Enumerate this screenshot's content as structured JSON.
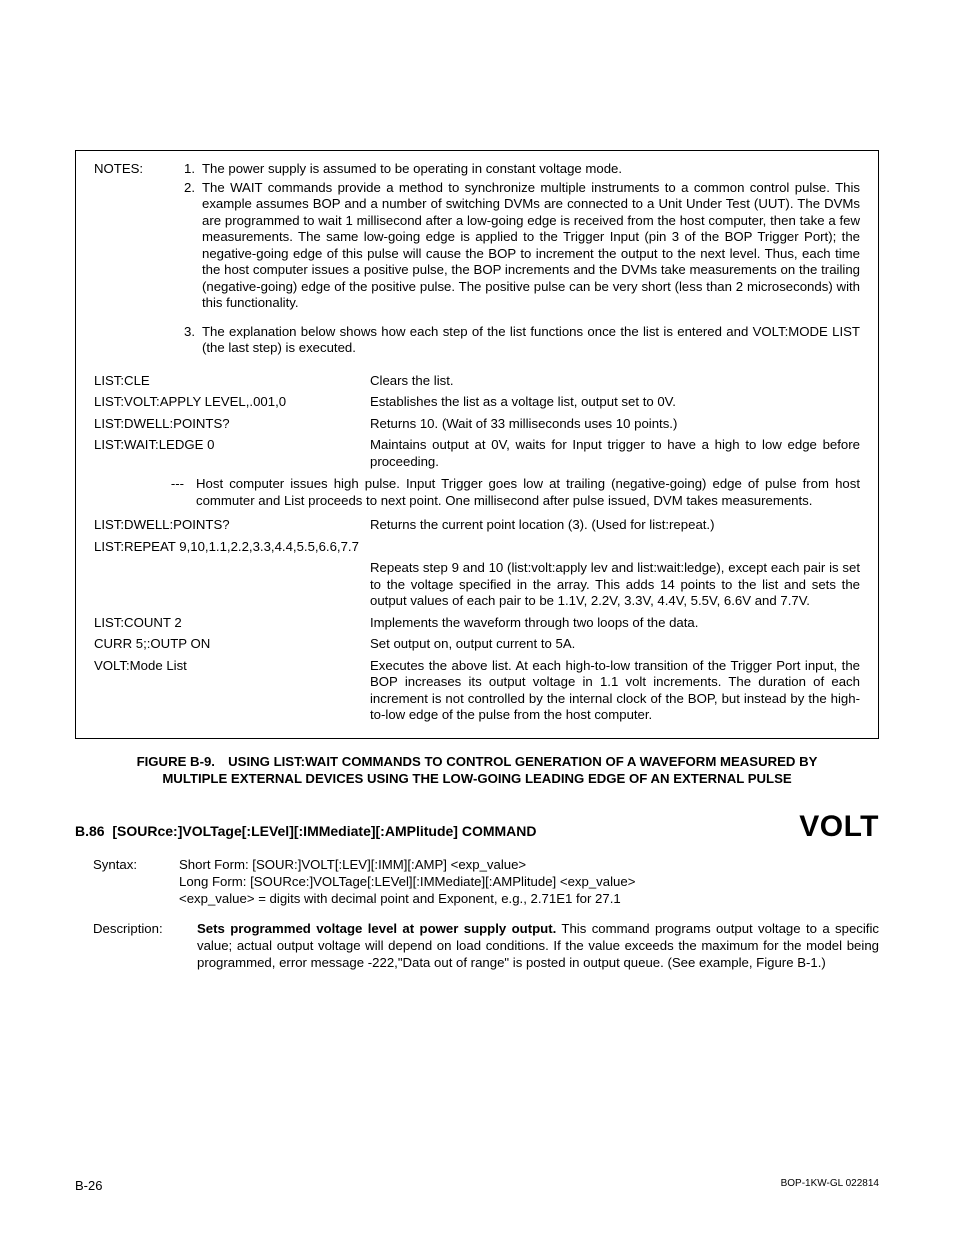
{
  "notes": {
    "label": "NOTES:",
    "n1": {
      "num": "1.",
      "text": "The power supply is assumed to be operating in constant voltage mode."
    },
    "n2": {
      "num": "2.",
      "text": "The WAIT commands provide a method to synchronize multiple instruments to a common control pulse. This example assumes BOP and a number of switching DVMs are connected to a Unit Under Test (UUT). The DVMs are programmed to wait 1 millisecond after a low-going edge is received from the host computer, then take a few measurements. The same low-going edge is applied to the Trigger Input (pin 3 of the BOP Trigger Port); the negative-going edge of this pulse will cause the BOP to increment the output to the next level. Thus, each time the host computer issues a positive pulse, the BOP increments and the DVMs take measurements on the trailing (negative-going) edge of the positive pulse. The positive pulse can be very short (less than 2 microseconds) with this functionality."
    },
    "n3": {
      "num": "3.",
      "text": "The explanation below shows how each step of the list functions once the list is entered and VOLT:MODE LIST (the last step) is executed."
    }
  },
  "cmds": {
    "r1": {
      "l": "LIST:CLE",
      "r": "Clears the list."
    },
    "r2": {
      "l": "LIST:VOLT:APPLY LEVEL,.001,0",
      "r": "Establishes the list as a voltage list, output set to 0V."
    },
    "r3": {
      "l": "LIST:DWELL:POINTS?",
      "r": "Returns 10. (Wait of 33 milliseconds uses 10 points.)"
    },
    "r4": {
      "l": "LIST:WAIT:LEDGE 0",
      "r": "Maintains output at 0V, waits for Input trigger to have a high to low edge before proceeding."
    },
    "dash": {
      "sym": "---",
      "text": "Host computer issues high pulse. Input Trigger goes low at trailing (negative-going) edge of pulse from host commuter and List proceeds to next point. One millisecond after pulse issued, DVM takes measurements."
    },
    "r5": {
      "l": "LIST:DWELL:POINTS?",
      "r": "Returns the current point location (3). (Used for list:repeat.)"
    },
    "r6full": "LIST:REPEAT 9,10,1.1,2.2,3.3,4.4,5.5,6.6,7.7",
    "r6r": "Repeats step 9 and 10 (list:volt:apply lev and list:wait:ledge), except each pair is set to the voltage specified in the array. This adds 14 points to the list and sets the output values of each pair to be 1.1V, 2.2V, 3.3V, 4.4V, 5.5V, 6.6V and 7.7V.",
    "r7": {
      "l": "LIST:COUNT 2",
      "r": "Implements the waveform through two loops of the data."
    },
    "r8": {
      "l": "CURR 5;:OUTP ON",
      "r": "Set output on, output current to 5A."
    },
    "r9": {
      "l": "VOLT:Mode List",
      "r": "Executes the above list. At each high-to-low transition of the Trigger Port input, the BOP increases its output voltage in 1.1 volt increments. The duration of each increment is not controlled by the internal clock of the BOP, but instead by the high-to-low edge of the pulse from the host computer."
    }
  },
  "figcap": {
    "l1": "FIGURE B-9. USING LIST:WAIT COMMANDS TO CONTROL GENERATION OF A WAVEFORM MEASURED BY",
    "l2": "MULTIPLE EXTERNAL DEVICES USING THE LOW-GOING LEADING EDGE OF AN EXTERNAL PULSE"
  },
  "section": {
    "num": "B.86",
    "title": "[SOURce:]VOLTage[:LEVel][:IMMediate][:AMPlitude] COMMAND",
    "big": "VOLT"
  },
  "syntax": {
    "label": "Syntax:",
    "l1": "Short Form: [SOUR:]VOLT[:LEV][:IMM][:AMP] <exp_value>",
    "l2": "Long Form: [SOURce:]VOLTage[:LEVel][:IMMediate][:AMPlitude] <exp_value>",
    "l3": "<exp_value> = digits with decimal point and Exponent, e.g., 2.71E1 for 27.1"
  },
  "desc": {
    "label": "Description:",
    "bold": "Sets programmed voltage level at power supply output.",
    "text": " This command programs output voltage to a specific value; actual output voltage will depend on load conditions. If the value exceeds the maximum for the model being programmed, error message -222,\"Data out of range\" is posted in output queue. (See example, Figure B-1.)"
  },
  "footer": {
    "left": "B-26",
    "right": "BOP-1KW-GL 022814"
  }
}
